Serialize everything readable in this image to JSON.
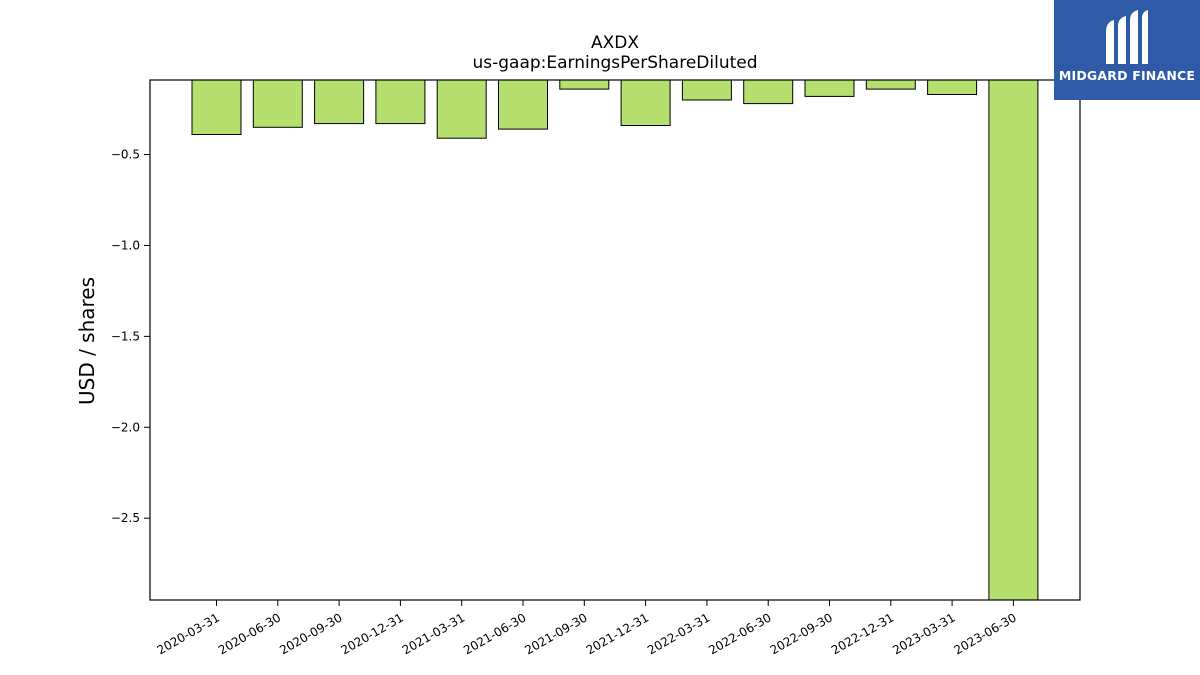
{
  "brand": {
    "name": "MIDGARD FINANCE",
    "bg_color": "#2f5aa8",
    "icon": "midgard-m-logo-icon"
  },
  "chart_data": {
    "type": "bar",
    "title": "AXDX",
    "subtitle": "us-gaap:EarningsPerShareDiluted",
    "ylabel": "USD / shares",
    "xlabel": "",
    "bar_color": "#b5df6e",
    "edge_color": "#000000",
    "ylim": [
      -2.95,
      -0.09
    ],
    "yticks": [
      -0.5,
      -1.0,
      -1.5,
      -2.0,
      -2.5
    ],
    "ytick_labels": [
      "−0.5",
      "−1.0",
      "−1.5",
      "−2.0",
      "−2.5"
    ],
    "grid": false,
    "legend": "none",
    "categories": [
      "2020-03-31",
      "2020-06-30",
      "2020-09-30",
      "2020-12-31",
      "2021-03-31",
      "2021-06-30",
      "2021-09-30",
      "2021-12-31",
      "2022-03-31",
      "2022-06-30",
      "2022-09-30",
      "2022-12-31",
      "2023-03-31",
      "2023-06-30"
    ],
    "values": [
      -0.39,
      -0.35,
      -0.33,
      -0.33,
      -0.41,
      -0.36,
      -0.14,
      -0.34,
      -0.2,
      -0.22,
      -0.18,
      -0.14,
      -0.17,
      -2.95
    ]
  }
}
